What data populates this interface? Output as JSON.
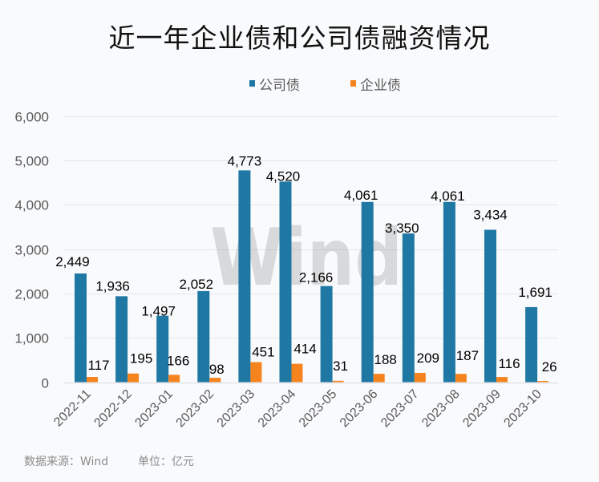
{
  "chart_data": {
    "type": "bar",
    "title": "近一年企业债和公司债融资情况",
    "categories": [
      "2022-11",
      "2022-12",
      "2023-01",
      "2023-02",
      "2023-03",
      "2023-04",
      "2023-05",
      "2023-06",
      "2023-07",
      "2023-08",
      "2023-09",
      "2023-10"
    ],
    "series": [
      {
        "name": "公司债",
        "color": "#1f77a4",
        "values": [
          2449,
          1936,
          1497,
          2052,
          4773,
          4520,
          2166,
          4061,
          3350,
          4061,
          3434,
          1691
        ],
        "labels": [
          "2,449",
          "1,936",
          "1,497",
          "2,052",
          "4,773",
          "4,520",
          "2,166",
          "4,061",
          "3,350",
          "4,061",
          "3,434",
          "1,691"
        ]
      },
      {
        "name": "企业债",
        "color": "#f5841f",
        "values": [
          117,
          195,
          166,
          98,
          451,
          414,
          31,
          188,
          209,
          187,
          116,
          26
        ],
        "labels": [
          "117",
          "195",
          "166",
          "98",
          "451",
          "414",
          "31",
          "188",
          "209",
          "187",
          "116",
          "26"
        ]
      }
    ],
    "xlabel": "",
    "ylabel": "",
    "ylim": [
      0,
      6000
    ],
    "yticks": [
      0,
      1000,
      2000,
      3000,
      4000,
      5000,
      6000
    ],
    "ytick_labels": [
      "0",
      "1,000",
      "2,000",
      "3,000",
      "4,000",
      "5,000",
      "6,000"
    ],
    "grid": true,
    "legend_position": "top-center",
    "data_labels": true
  },
  "footer": {
    "source": "数据来源：Wind",
    "unit": "单位：亿元"
  },
  "watermark": "Wind",
  "colors": {
    "background": "#f9fafc",
    "gridline": "#e3e6ea",
    "axis": "#d6d9de"
  }
}
